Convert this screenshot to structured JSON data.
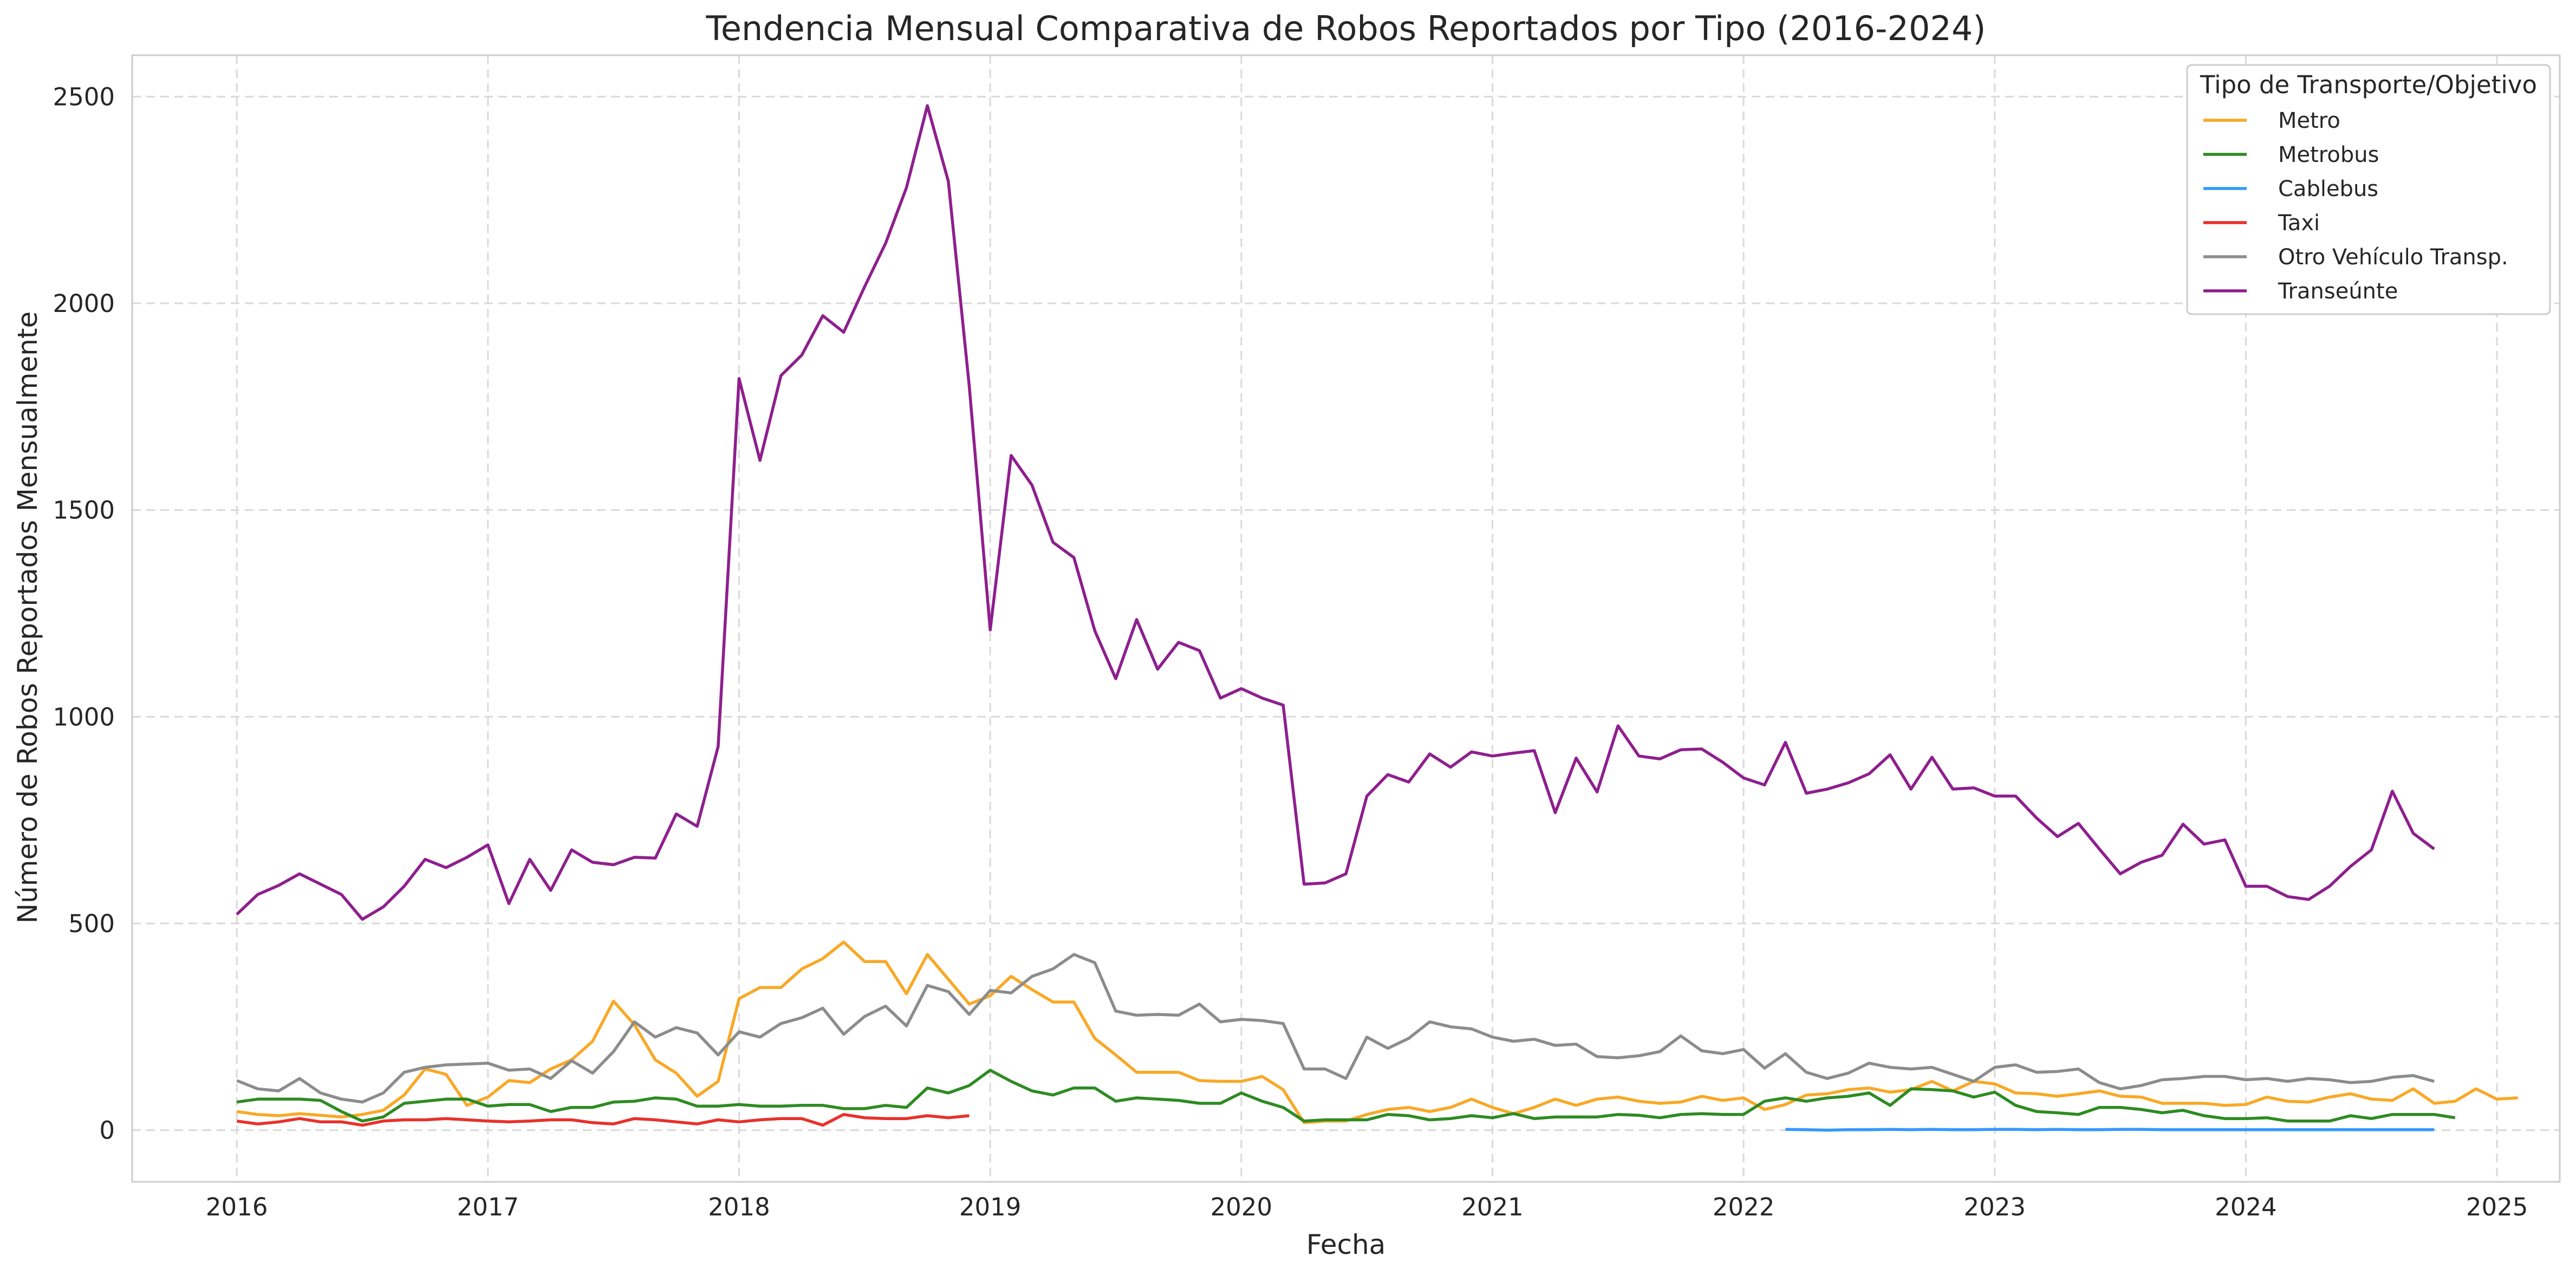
{
  "chart_data": {
    "type": "line",
    "title": "Tendencia Mensual Comparativa de Robos Reportados por Tipo (2016-2024)",
    "xlabel": "Fecha",
    "ylabel": "Número de Robos Reportados Mensualmente",
    "xlim": [
      "2015-08",
      "2025-04"
    ],
    "ylim": [
      -125,
      2600
    ],
    "x_ticks": [
      "2016",
      "2017",
      "2018",
      "2019",
      "2020",
      "2021",
      "2022",
      "2023",
      "2024",
      "2025"
    ],
    "y_ticks": [
      0,
      500,
      1000,
      1500,
      2000,
      2500
    ],
    "grid": true,
    "legend": {
      "title": "Tipo de Transporte/Objetivo",
      "placement": "top-right"
    },
    "series": [
      {
        "name": "Metro",
        "color": "#f9a825",
        "start": "2016-01",
        "values": [
          45,
          38,
          35,
          40,
          36,
          32,
          38,
          48,
          85,
          148,
          135,
          60,
          80,
          120,
          115,
          148,
          170,
          215,
          312,
          255,
          170,
          138,
          82,
          118,
          318,
          345,
          345,
          390,
          415,
          455,
          408,
          408,
          330,
          425,
          365,
          305,
          325,
          372,
          340,
          310,
          310,
          222,
          182,
          140,
          140,
          140,
          120,
          118,
          118,
          130,
          98,
          18,
          22,
          22,
          38,
          50,
          55,
          45,
          55,
          75,
          55,
          40,
          55,
          75,
          60,
          75,
          80,
          70,
          65,
          68,
          82,
          72,
          78,
          50,
          62,
          85,
          88,
          98,
          102,
          92,
          98,
          118,
          95,
          118,
          112,
          90,
          88,
          82,
          88,
          95,
          82,
          80,
          65,
          65,
          65,
          60,
          62,
          80,
          70,
          68,
          80,
          88,
          75,
          72,
          100,
          65,
          70,
          100,
          75,
          78
        ]
      },
      {
        "name": "Metrobus",
        "color": "#2e8b22",
        "start": "2016-01",
        "values": [
          68,
          75,
          75,
          75,
          72,
          45,
          22,
          32,
          65,
          70,
          75,
          75,
          58,
          62,
          62,
          45,
          55,
          55,
          68,
          70,
          78,
          75,
          58,
          58,
          62,
          58,
          58,
          60,
          60,
          52,
          52,
          60,
          55,
          102,
          90,
          108,
          145,
          118,
          95,
          85,
          102,
          102,
          70,
          78,
          75,
          72,
          65,
          65,
          90,
          70,
          55,
          22,
          25,
          25,
          25,
          38,
          35,
          25,
          28,
          35,
          30,
          40,
          28,
          32,
          32,
          32,
          38,
          36,
          30,
          38,
          40,
          38,
          38,
          70,
          78,
          70,
          78,
          82,
          90,
          60,
          100,
          98,
          95,
          80,
          92,
          60,
          45,
          42,
          38,
          55,
          55,
          50,
          42,
          48,
          35,
          28,
          28,
          30,
          22,
          22,
          22,
          35,
          28,
          38,
          38,
          38,
          30
        ]
      },
      {
        "name": "Cablebus",
        "color": "#3399ff",
        "start": "2022-03",
        "values": [
          2,
          1,
          0,
          1,
          1,
          2,
          1,
          2,
          1,
          1,
          2,
          2,
          1,
          2,
          1,
          1,
          2,
          2,
          1,
          1,
          1,
          1,
          1,
          1,
          1,
          1,
          1,
          1,
          1,
          1,
          1,
          1
        ]
      },
      {
        "name": "Taxi",
        "color": "#e8312a",
        "start": "2016-01",
        "values": [
          22,
          15,
          20,
          28,
          20,
          20,
          12,
          22,
          25,
          25,
          28,
          25,
          22,
          20,
          22,
          25,
          25,
          18,
          15,
          28,
          25,
          20,
          15,
          25,
          20,
          25,
          28,
          28,
          12,
          38,
          30,
          28,
          28,
          35,
          30,
          35
        ]
      },
      {
        "name": "Otro Vehículo Transp.",
        "color": "#8c8c8c",
        "start": "2016-01",
        "values": [
          120,
          100,
          95,
          125,
          90,
          75,
          68,
          90,
          140,
          152,
          158,
          160,
          162,
          145,
          148,
          125,
          168,
          138,
          190,
          262,
          225,
          248,
          235,
          182,
          238,
          225,
          258,
          272,
          295,
          232,
          275,
          300,
          252,
          350,
          335,
          280,
          338,
          332,
          372,
          390,
          425,
          405,
          288,
          278,
          280,
          278,
          305,
          262,
          268,
          265,
          258,
          148,
          148,
          125,
          225,
          198,
          222,
          262,
          250,
          245,
          225,
          215,
          220,
          205,
          208,
          178,
          175,
          180,
          190,
          228,
          192,
          185,
          195,
          150,
          185,
          140,
          125,
          138,
          162,
          152,
          148,
          152,
          135,
          118,
          152,
          158,
          140,
          142,
          148,
          115,
          100,
          108,
          122,
          125,
          130,
          130,
          122,
          125,
          118,
          125,
          122,
          115,
          118,
          128,
          132,
          118
        ]
      },
      {
        "name": "Transeúnte",
        "color": "#8e1f8e",
        "start": "2016-01",
        "values": [
          522,
          570,
          592,
          620,
          595,
          570,
          510,
          540,
          590,
          655,
          635,
          660,
          690,
          548,
          655,
          580,
          678,
          648,
          642,
          660,
          658,
          765,
          735,
          928,
          1818,
          1620,
          1825,
          1875,
          1970,
          1930,
          2040,
          2145,
          2280,
          2478,
          2295,
          1800,
          1210,
          1632,
          1560,
          1422,
          1385,
          1208,
          1092,
          1235,
          1115,
          1180,
          1160,
          1045,
          1068,
          1045,
          1028,
          595,
          598,
          620,
          808,
          860,
          842,
          910,
          878,
          915,
          905,
          912,
          918,
          768,
          900,
          818,
          978,
          905,
          898,
          920,
          922,
          890,
          852,
          835,
          938,
          815,
          825,
          840,
          862,
          908,
          825,
          902,
          825,
          828,
          808,
          808,
          755,
          710,
          742,
          680,
          620,
          648,
          665,
          740,
          692,
          702,
          590,
          590,
          565,
          558,
          590,
          638,
          678,
          820,
          718,
          680
        ]
      }
    ]
  }
}
